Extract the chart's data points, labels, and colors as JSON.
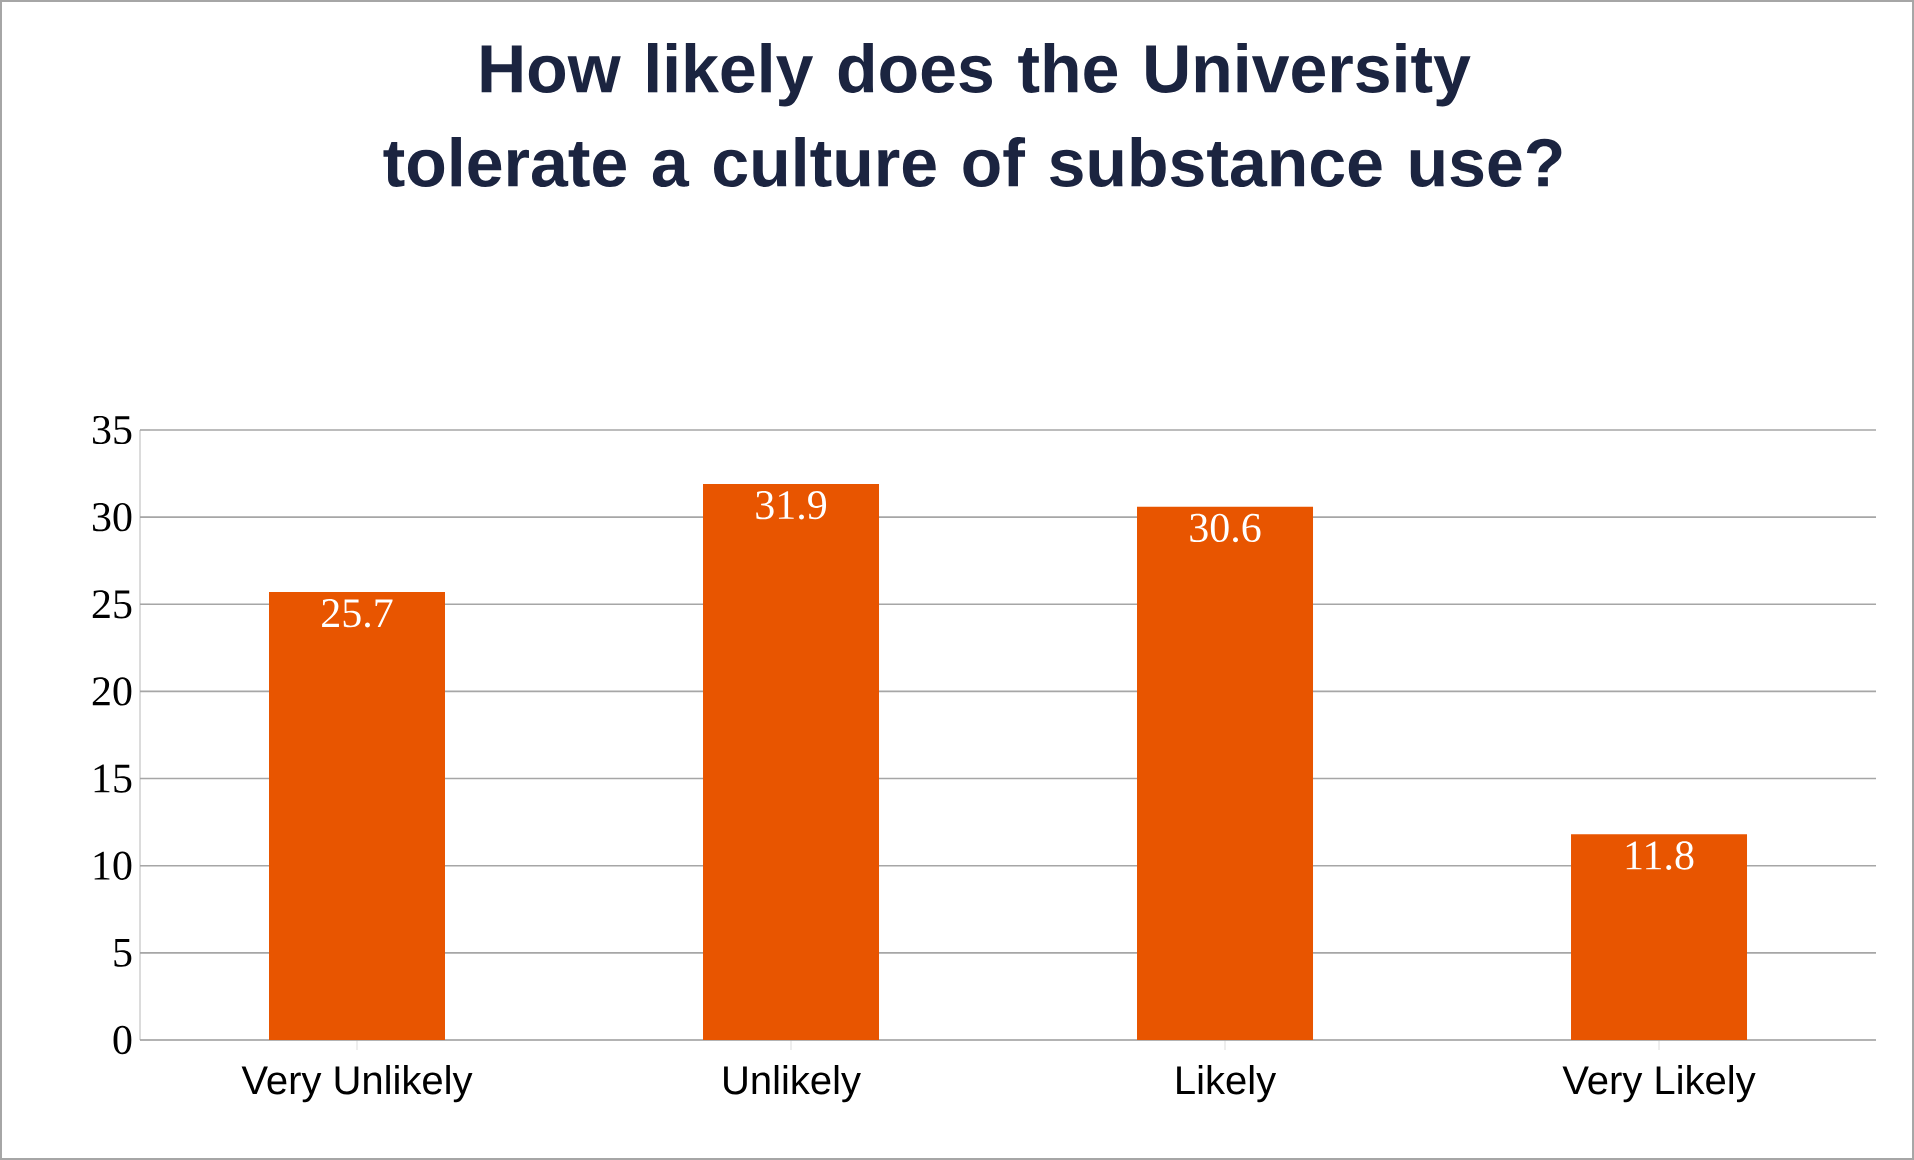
{
  "chart_data": {
    "type": "bar",
    "title": "How likely does the University tolerate a culture of substance use?",
    "categories": [
      "Very Unlikely",
      "Unlikely",
      "Likely",
      "Very Likely"
    ],
    "values": [
      25.7,
      31.9,
      30.6,
      11.8
    ],
    "color": "#e85500",
    "ylim": [
      0,
      35
    ],
    "yticks": [
      0,
      5,
      10,
      15,
      20,
      25,
      30,
      35
    ],
    "grid": "y",
    "data_labels": true
  }
}
